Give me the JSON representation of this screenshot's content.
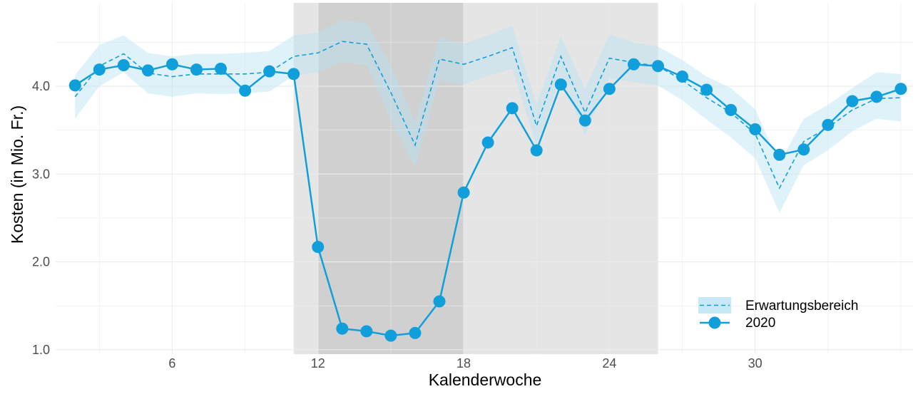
{
  "chart_data": {
    "type": "line",
    "title": "",
    "xlabel": "Kalenderwoche",
    "ylabel": "Kosten (in Mio. Fr.)",
    "xlim": [
      1.2,
      36.5
    ],
    "ylim": [
      0.95,
      4.95
    ],
    "x_ticks": [
      6,
      12,
      18,
      24,
      30
    ],
    "x_tick_labels": [
      "6",
      "12",
      "18",
      "24",
      "30"
    ],
    "y_ticks": [
      1,
      2,
      3,
      4
    ],
    "y_tick_labels": [
      "1.0",
      "2.0",
      "3.0",
      "4.0"
    ],
    "grid": true,
    "legend_position": "bottom-right",
    "shaded_periods": [
      {
        "from": 11,
        "to": 26,
        "color": "#e5e5e5"
      },
      {
        "from": 12,
        "to": 18,
        "color": "#d0d0d0"
      }
    ],
    "colors": {
      "series": "#119fdc",
      "band": "#b9e2f4",
      "grid": "#ebebeb"
    },
    "series": [
      {
        "name": "2020",
        "style": "line-with-points",
        "x": [
          2,
          3,
          4,
          5,
          6,
          7,
          8,
          9,
          10,
          11,
          12,
          13,
          14,
          15,
          16,
          17,
          18,
          19,
          20,
          21,
          22,
          23,
          24,
          25,
          26,
          27,
          28,
          29,
          30,
          31,
          32,
          33,
          34,
          35,
          36
        ],
        "values": [
          4.01,
          4.19,
          4.24,
          4.18,
          4.25,
          4.19,
          4.2,
          3.95,
          4.17,
          4.14,
          2.17,
          1.24,
          1.21,
          1.16,
          1.19,
          1.55,
          2.79,
          3.36,
          3.75,
          3.27,
          4.02,
          3.61,
          3.97,
          4.25,
          4.23,
          4.11,
          3.96,
          3.73,
          3.51,
          3.22,
          3.28,
          3.56,
          3.83,
          3.88,
          3.97
        ]
      },
      {
        "name": "Erwartungsbereich",
        "style": "dashed-line-with-band",
        "x": [
          2,
          3,
          4,
          5,
          6,
          7,
          8,
          9,
          10,
          11,
          12,
          13,
          14,
          15,
          16,
          17,
          18,
          19,
          20,
          21,
          22,
          23,
          24,
          25,
          26,
          27,
          28,
          29,
          30,
          31,
          32,
          33,
          34,
          35,
          36
        ],
        "values": [
          3.88,
          4.23,
          4.37,
          4.15,
          4.11,
          4.14,
          4.14,
          4.14,
          4.16,
          4.34,
          4.38,
          4.51,
          4.48,
          3.93,
          3.33,
          4.31,
          4.25,
          4.34,
          4.44,
          3.55,
          4.34,
          3.7,
          4.32,
          4.27,
          4.23,
          4.07,
          3.87,
          3.7,
          3.46,
          2.84,
          3.37,
          3.53,
          3.73,
          3.86,
          3.87
        ],
        "lower": [
          3.63,
          4.0,
          4.16,
          3.92,
          3.88,
          3.92,
          3.91,
          3.92,
          3.94,
          4.12,
          4.16,
          4.28,
          4.24,
          3.62,
          3.07,
          4.07,
          4.02,
          4.12,
          4.2,
          3.32,
          4.1,
          3.44,
          4.09,
          4.05,
          4.01,
          3.84,
          3.62,
          3.42,
          3.18,
          2.56,
          3.1,
          3.27,
          3.49,
          3.63,
          3.6
        ],
        "upper": [
          4.13,
          4.47,
          4.58,
          4.38,
          4.34,
          4.37,
          4.37,
          4.38,
          4.4,
          4.58,
          4.61,
          4.75,
          4.72,
          4.24,
          3.59,
          4.56,
          4.48,
          4.58,
          4.69,
          3.79,
          4.57,
          3.97,
          4.59,
          4.5,
          4.45,
          4.3,
          4.11,
          3.98,
          3.74,
          3.12,
          3.63,
          3.79,
          3.98,
          4.16,
          4.14
        ]
      }
    ]
  }
}
